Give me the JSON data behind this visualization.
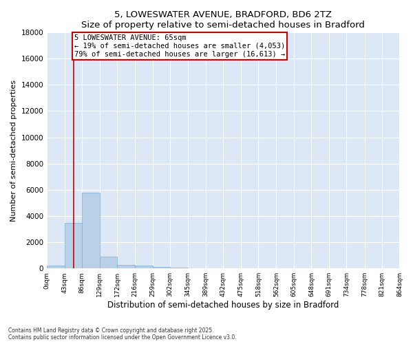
{
  "title": "5, LOWESWATER AVENUE, BRADFORD, BD6 2TZ",
  "subtitle": "Size of property relative to semi-detached houses in Bradford",
  "xlabel": "Distribution of semi-detached houses by size in Bradford",
  "ylabel": "Number of semi-detached properties",
  "annotation_text": "5 LOWESWATER AVENUE: 65sqm\n← 19% of semi-detached houses are smaller (4,053)\n79% of semi-detached houses are larger (16,613) →",
  "bin_edges": [
    0,
    43,
    86,
    129,
    172,
    216,
    259,
    302,
    345,
    389,
    432,
    475,
    518,
    562,
    605,
    648,
    691,
    734,
    778,
    821,
    864
  ],
  "bar_values": [
    200,
    3450,
    5800,
    900,
    250,
    200,
    100,
    50,
    20,
    10,
    5,
    5,
    5,
    5,
    3,
    3,
    0,
    0,
    0,
    0
  ],
  "bar_color": "#b8d0e8",
  "bar_edge_color": "#7aafd4",
  "property_line_x": 65,
  "ylim": [
    0,
    18000
  ],
  "yticks": [
    0,
    2000,
    4000,
    6000,
    8000,
    10000,
    12000,
    14000,
    16000,
    18000
  ],
  "annotation_box_color": "#cc0000",
  "background_color": "#dce8f5",
  "fig_bg_color": "#ffffff",
  "grid_color": "#ffffff",
  "footer_line1": "Contains HM Land Registry data © Crown copyright and database right 2025.",
  "footer_line2": "Contains public sector information licensed under the Open Government Licence v3.0."
}
